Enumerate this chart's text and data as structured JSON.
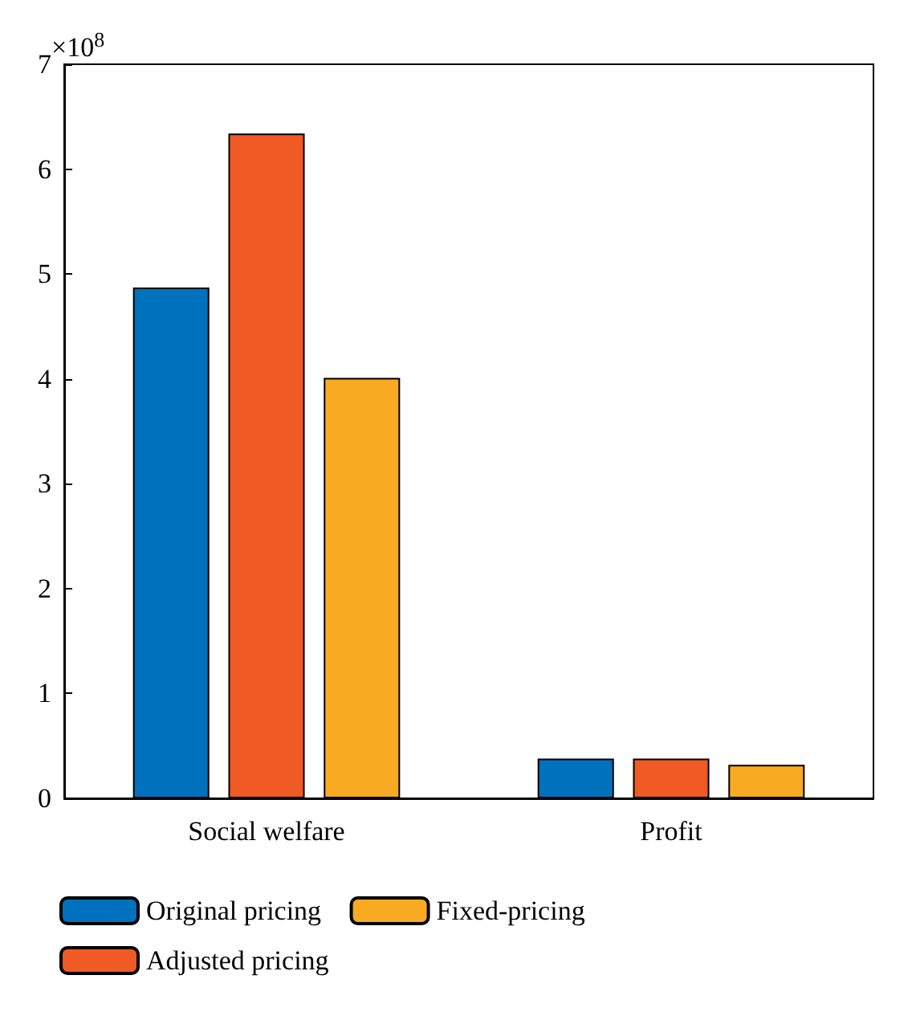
{
  "chart_data": {
    "type": "bar",
    "categories": [
      "Social welfare",
      "Profit"
    ],
    "series": [
      {
        "name": "Original pricing",
        "color": "#0072bd",
        "values": [
          4.87,
          0.38
        ]
      },
      {
        "name": "Adjusted pricing",
        "color": "#f05a24",
        "values": [
          6.34,
          0.38
        ]
      },
      {
        "name": "Fixed-pricing",
        "color": "#f8ab22",
        "values": [
          4.01,
          0.32
        ]
      }
    ],
    "ylim": [
      0,
      7
    ],
    "yticks": [
      0,
      1,
      2,
      3,
      4,
      5,
      6,
      7
    ],
    "annotations": [
      "×10$^{8}$"
    ],
    "grid": false,
    "legend": "bottom left"
  }
}
